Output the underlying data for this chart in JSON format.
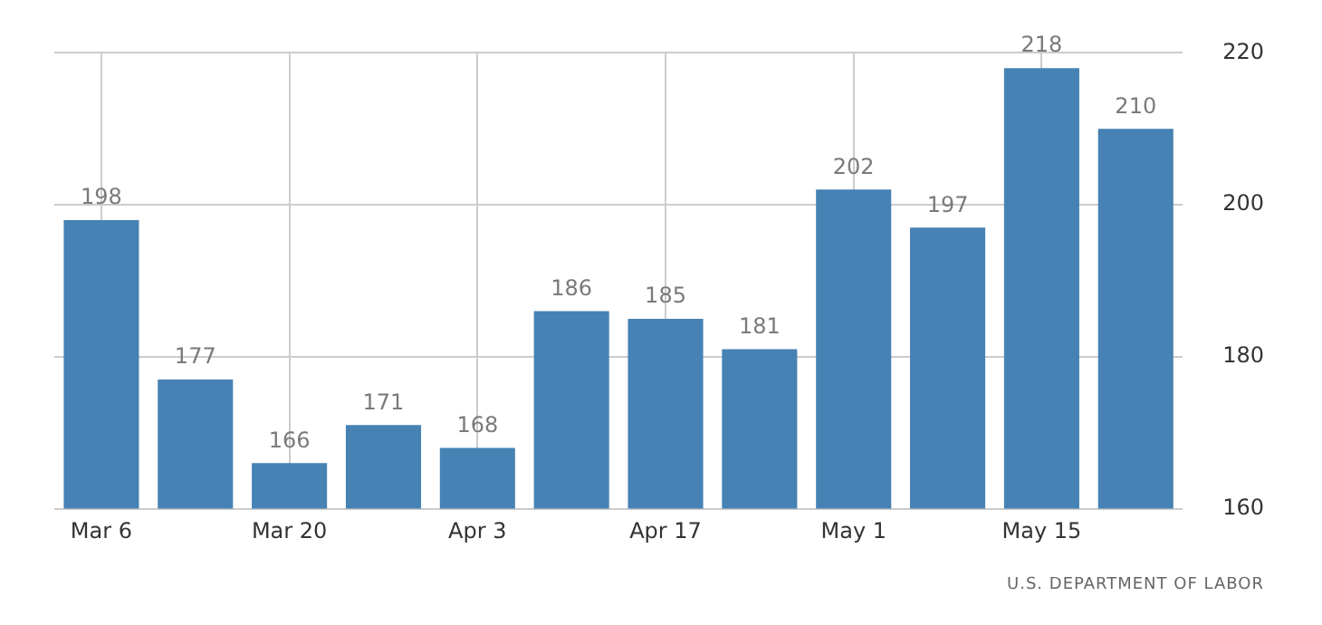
{
  "chart_data": {
    "type": "bar",
    "categories": [
      "Mar 6",
      null,
      "Mar 20",
      null,
      "Apr 3",
      null,
      "Apr 17",
      null,
      "May 1",
      null,
      "May 15",
      null
    ],
    "values": [
      198,
      177,
      166,
      171,
      168,
      186,
      185,
      181,
      202,
      197,
      218,
      210
    ],
    "color": "#4682b4",
    "ylim": [
      160,
      220
    ],
    "yticks": [
      160,
      180,
      200,
      220
    ],
    "grid": true,
    "legend": false,
    "data_labels": true,
    "annotations": [
      "U.S. DEPARTMENT OF LABOR"
    ]
  }
}
